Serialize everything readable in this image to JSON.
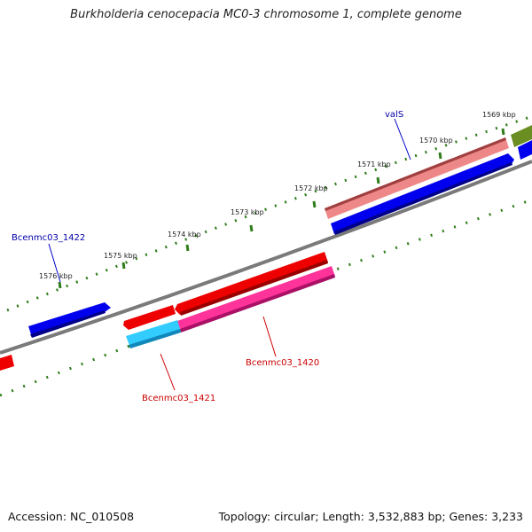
{
  "title": "Burkholderia cenocepacia MC0-3 chromosome 1, complete genome",
  "footer": {
    "accession": "Accession: NC_010508",
    "info": "Topology: circular; Length: 3,532,883 bp; Genes: 3,233"
  },
  "scale": {
    "tick_labels": [
      "1569 kbp",
      "1570 kbp",
      "1571 kbp",
      "1572 kbp",
      "1573 kbp",
      "1574 kbp",
      "1575 kbp",
      "1576 kbp"
    ]
  },
  "genes": [
    {
      "name": "valS",
      "color": "#0000aa"
    },
    {
      "name": "Bcenmc03_1422",
      "color": "#0000aa"
    },
    {
      "name": "Bcenmc03_1420",
      "color": "#cc0000"
    },
    {
      "name": "Bcenmc03_1421",
      "color": "#cc0000"
    }
  ],
  "colors": {
    "backbone": "#7a7a7a",
    "ticks": "#2e7d1a",
    "forward_cds": "#ee0000",
    "reverse_cds": "#0000ee",
    "trna": "#ff3399",
    "rrna": "#33ccff",
    "pseudo": "#ee8888",
    "other": "#6b8e23"
  }
}
